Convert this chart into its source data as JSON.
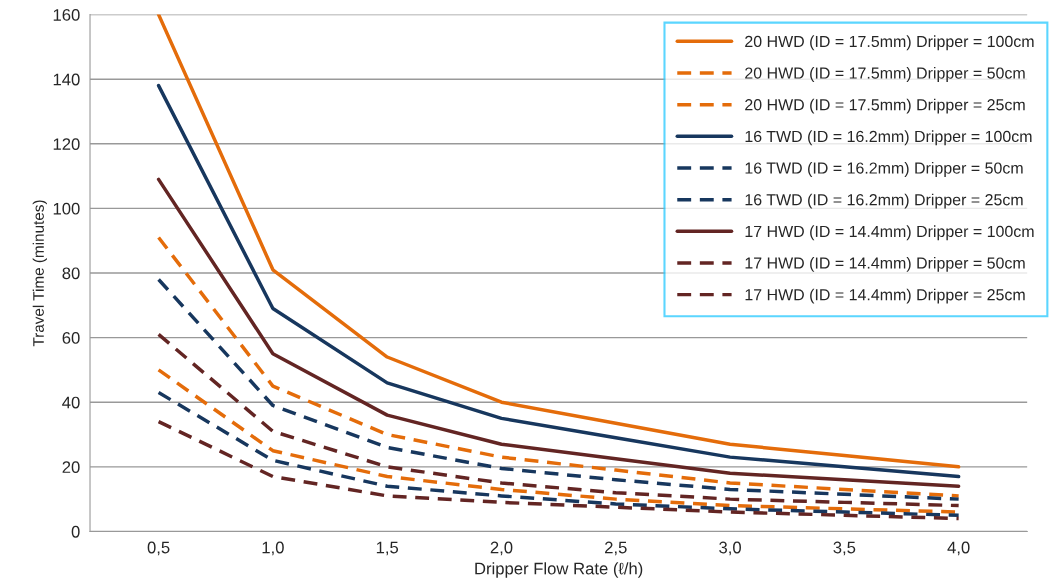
{
  "chart_data": {
    "type": "line",
    "xlabel": "Dripper Flow Rate (ℓ/h)",
    "ylabel": "Travel Time (minutes)",
    "categories": [
      "0,5",
      "1,0",
      "1,5",
      "2,0",
      "2,5",
      "3,0",
      "3,5",
      "4,0"
    ],
    "ylim": [
      0,
      160
    ],
    "yticks": [
      0,
      20,
      40,
      60,
      80,
      100,
      120,
      140,
      160
    ],
    "grid": "y",
    "legend": "top right",
    "marker": "none",
    "series": [
      {
        "name": "20 HWD (ID = 17.5mm) Dripper = 100cm",
        "color": "#e46c0a",
        "line_style": "solid",
        "values": [
          160,
          81,
          54,
          40,
          33.5,
          27,
          23.5,
          20
        ]
      },
      {
        "name": "20 HWD (ID = 17.5mm) Dripper = 50cm",
        "color": "#e46c0a",
        "line_style": "dashed",
        "values": [
          91,
          45,
          30,
          23,
          19,
          15,
          13,
          11
        ]
      },
      {
        "name": "20 HWD (ID = 17.5mm) Dripper = 25cm",
        "color": "#e46c0a",
        "line_style": "dashed",
        "values": [
          50,
          25,
          17,
          13,
          10,
          8,
          7,
          6
        ]
      },
      {
        "name": "16 TWD (ID = 16.2mm) Dripper = 100cm",
        "color": "#17375e",
        "line_style": "solid",
        "values": [
          138,
          69,
          46,
          35,
          29,
          23,
          20,
          17
        ]
      },
      {
        "name": "16 TWD (ID = 16.2mm) Dripper = 50cm",
        "color": "#17375e",
        "line_style": "dashed",
        "values": [
          78,
          39,
          26,
          19.5,
          16,
          13,
          11.5,
          10
        ]
      },
      {
        "name": "16 TWD (ID = 16.2mm) Dripper = 25cm",
        "color": "#17375e",
        "line_style": "dashed",
        "values": [
          43,
          22,
          14,
          11,
          8.5,
          7,
          6,
          5
        ]
      },
      {
        "name": "17 HWD (ID = 14.4mm) Dripper = 100cm",
        "color": "#632523",
        "line_style": "solid",
        "values": [
          109,
          55,
          36,
          27,
          22.5,
          18,
          16,
          14
        ]
      },
      {
        "name": "17 HWD (ID = 14.4mm) Dripper = 50cm",
        "color": "#632523",
        "line_style": "dashed",
        "values": [
          61,
          31,
          20,
          15,
          12,
          10,
          9,
          8
        ]
      },
      {
        "name": "17 HWD (ID = 14.4mm) Dripper = 25cm",
        "color": "#632523",
        "line_style": "dashed",
        "values": [
          34,
          17,
          11,
          9,
          7.5,
          6,
          5,
          4
        ]
      }
    ]
  }
}
